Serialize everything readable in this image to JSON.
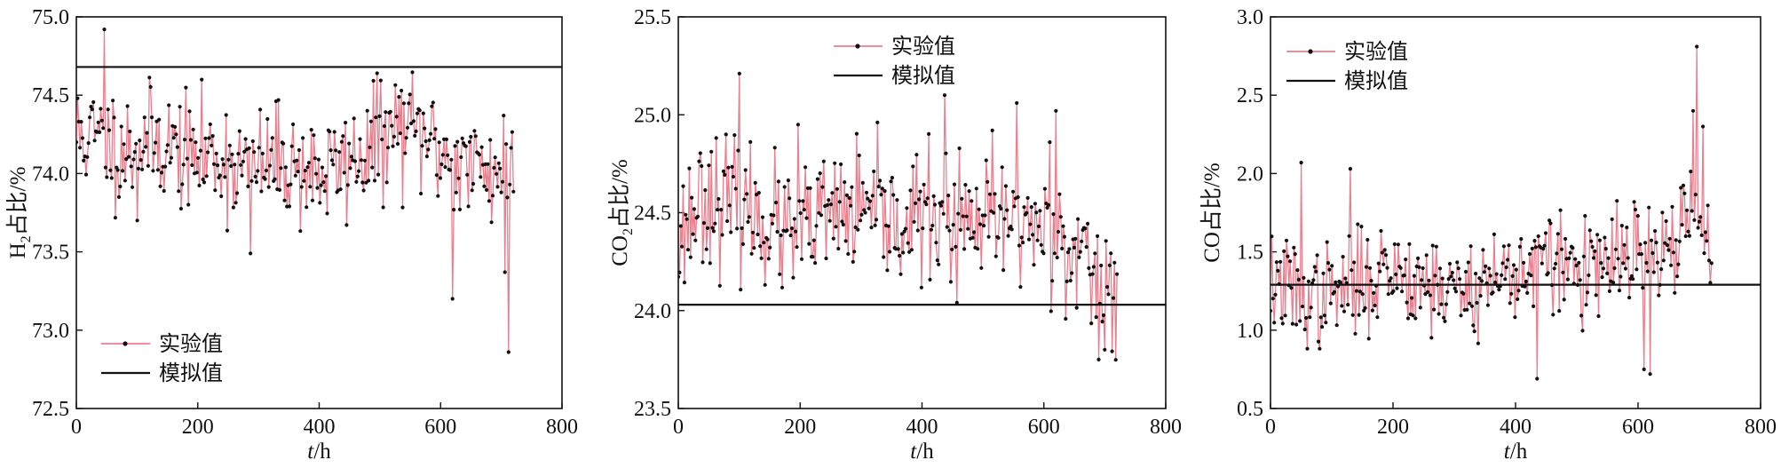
{
  "chart_data": [
    {
      "type": "line",
      "xlabel": {
        "italic": "t",
        "rest": "/h"
      },
      "ylabel": {
        "main": "H",
        "sub": "2",
        "rest": "占比/%"
      },
      "xlim": [
        0,
        800
      ],
      "ylim": [
        72.5,
        75.0
      ],
      "xticks": [
        0,
        200,
        400,
        600,
        800
      ],
      "yticks": [
        72.5,
        73.0,
        73.5,
        74.0,
        74.5,
        75.0
      ],
      "tick_labels_y": [
        "72.5",
        "73.0",
        "73.5",
        "74.0",
        "74.5",
        "75.0"
      ],
      "legend_position": "bottom-left",
      "series": [
        {
          "name": "实验值",
          "kind": "experimental",
          "color": "#e8687a",
          "marker_color": "#111111",
          "x_start": 0,
          "x_end": 720,
          "base_values": [
            74.25,
            74.22,
            74.15,
            74.2,
            74.18,
            74.1,
            74.12,
            74.05,
            74.05,
            74.08,
            74.02,
            74.0,
            74.1,
            74.15,
            74.3,
            74.25,
            74.12,
            74.05,
            74.02,
            74.05
          ],
          "noise": 0.18,
          "seed": 11,
          "spikes": [
            [
              46,
              74.92
            ],
            [
              100,
              73.7
            ],
            [
              286,
              73.49
            ],
            [
              495,
              74.64
            ],
            [
              620,
              73.2
            ],
            [
              706,
              73.37
            ],
            [
              712,
              72.86
            ]
          ]
        },
        {
          "name": "模拟值",
          "kind": "simulated",
          "color": "#111111",
          "value": 74.68
        }
      ]
    },
    {
      "type": "line",
      "xlabel": {
        "italic": "t",
        "rest": "/h"
      },
      "ylabel": {
        "main": "CO",
        "sub": "2",
        "rest": "占比/%"
      },
      "xlim": [
        0,
        800
      ],
      "ylim": [
        23.5,
        25.5
      ],
      "xticks": [
        0,
        200,
        400,
        600,
        800
      ],
      "yticks": [
        23.5,
        24.0,
        24.5,
        25.0,
        25.5
      ],
      "tick_labels_y": [
        "23.5",
        "24.0",
        "24.5",
        "25.0",
        "25.5"
      ],
      "legend_position": "top-center",
      "series": [
        {
          "name": "实验值",
          "kind": "experimental",
          "color": "#e8687a",
          "marker_color": "#111111",
          "x_start": 0,
          "x_end": 720,
          "base_values": [
            24.35,
            24.6,
            24.55,
            24.5,
            24.45,
            24.35,
            24.45,
            24.5,
            24.5,
            24.45,
            24.45,
            24.5,
            24.45,
            24.4,
            24.45,
            24.45,
            24.4,
            24.35,
            24.15,
            24.15
          ],
          "noise": 0.16,
          "seed": 23,
          "spikes": [
            [
              100,
              25.21
            ],
            [
              197,
              24.95
            ],
            [
              437,
              25.1
            ],
            [
              458,
              24.04
            ],
            [
              516,
              24.92
            ],
            [
              556,
              25.06
            ],
            [
              610,
              24.86
            ],
            [
              620,
              25.02
            ],
            [
              690,
              23.75
            ],
            [
              700,
              23.8
            ]
          ]
        },
        {
          "name": "模拟值",
          "kind": "simulated",
          "color": "#111111",
          "value": 24.03
        }
      ]
    },
    {
      "type": "line",
      "xlabel": {
        "italic": "t",
        "rest": "/h"
      },
      "ylabel": {
        "main": "CO",
        "sub": "",
        "rest": "占比/%"
      },
      "xlim": [
        0,
        800
      ],
      "ylim": [
        0.5,
        3.0
      ],
      "xticks": [
        0,
        200,
        400,
        600,
        800
      ],
      "yticks": [
        0.5,
        1.0,
        1.5,
        2.0,
        2.5,
        3.0
      ],
      "tick_labels_y": [
        "0.5",
        "1.0",
        "1.5",
        "2.0",
        "2.5",
        "3.0"
      ],
      "legend_position": "top-left",
      "series": [
        {
          "name": "实验值",
          "kind": "experimental",
          "color": "#e8687a",
          "marker_color": "#111111",
          "x_start": 0,
          "x_end": 720,
          "base_values": [
            1.3,
            1.25,
            1.2,
            1.25,
            1.3,
            1.4,
            1.35,
            1.3,
            1.25,
            1.3,
            1.35,
            1.4,
            1.45,
            1.4,
            1.35,
            1.45,
            1.5,
            1.45,
            1.75,
            1.5
          ],
          "noise": 0.16,
          "seed": 37,
          "spikes": [
            [
              50,
              2.07
            ],
            [
              130,
              2.03
            ],
            [
              436,
              0.69
            ],
            [
              610,
              0.75
            ],
            [
              620,
              0.72
            ],
            [
              690,
              2.4
            ],
            [
              696,
              2.81
            ],
            [
              705,
              2.3
            ]
          ]
        },
        {
          "name": "模拟值",
          "kind": "simulated",
          "color": "#111111",
          "value": 1.29
        }
      ]
    }
  ]
}
